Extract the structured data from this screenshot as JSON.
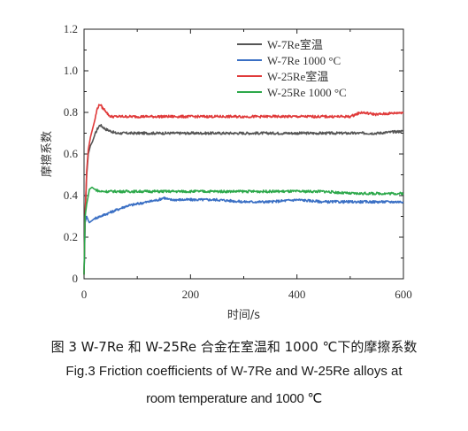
{
  "chart_data": {
    "type": "line",
    "ylabel": "摩擦系数",
    "xlabel": "时间/s",
    "xlim": [
      0,
      600
    ],
    "ylim": [
      0,
      1.2
    ],
    "xticks": [
      "0",
      "200",
      "400",
      "600"
    ],
    "yticks": [
      "0",
      "0.2",
      "0.4",
      "0.6",
      "0.8",
      "1.0",
      "1.2"
    ],
    "legend_position": "top-right",
    "series": [
      {
        "name": "W-7Re室温",
        "color": "#555555",
        "x": [
          0,
          2,
          5,
          8,
          12,
          16,
          20,
          25,
          30,
          35,
          40,
          50,
          60,
          80,
          100,
          120,
          140,
          160,
          180,
          200,
          250,
          300,
          350,
          400,
          450,
          500,
          550,
          600
        ],
        "y": [
          0.02,
          0.3,
          0.5,
          0.6,
          0.64,
          0.66,
          0.69,
          0.72,
          0.74,
          0.73,
          0.72,
          0.71,
          0.7,
          0.7,
          0.7,
          0.7,
          0.7,
          0.7,
          0.7,
          0.7,
          0.7,
          0.7,
          0.7,
          0.7,
          0.7,
          0.7,
          0.7,
          0.71
        ]
      },
      {
        "name": "W-7Re 1000 °C",
        "color": "#3a6fc4",
        "x": [
          0,
          2,
          5,
          8,
          10,
          15,
          20,
          30,
          40,
          60,
          80,
          100,
          120,
          140,
          150,
          160,
          180,
          200,
          250,
          300,
          350,
          400,
          450,
          500,
          550,
          600
        ],
        "y": [
          0.02,
          0.27,
          0.3,
          0.28,
          0.27,
          0.28,
          0.29,
          0.3,
          0.31,
          0.33,
          0.35,
          0.36,
          0.37,
          0.38,
          0.39,
          0.38,
          0.38,
          0.38,
          0.38,
          0.37,
          0.37,
          0.38,
          0.37,
          0.37,
          0.37,
          0.37
        ]
      },
      {
        "name": "W-25Re室温",
        "color": "#e03a3a",
        "x": [
          0,
          2,
          5,
          8,
          12,
          16,
          20,
          25,
          30,
          35,
          40,
          45,
          50,
          60,
          80,
          100,
          150,
          200,
          250,
          300,
          350,
          400,
          450,
          500,
          520,
          550,
          600
        ],
        "y": [
          0.02,
          0.3,
          0.52,
          0.62,
          0.68,
          0.72,
          0.76,
          0.82,
          0.84,
          0.82,
          0.81,
          0.79,
          0.78,
          0.78,
          0.78,
          0.78,
          0.78,
          0.78,
          0.78,
          0.78,
          0.78,
          0.78,
          0.78,
          0.78,
          0.8,
          0.79,
          0.8
        ]
      },
      {
        "name": "W-25Re 1000 °C",
        "color": "#2ca84a",
        "x": [
          0,
          2,
          5,
          8,
          10,
          15,
          20,
          30,
          40,
          60,
          80,
          100,
          150,
          200,
          250,
          300,
          350,
          400,
          450,
          500,
          550,
          600
        ],
        "y": [
          0.02,
          0.3,
          0.36,
          0.4,
          0.43,
          0.44,
          0.43,
          0.42,
          0.42,
          0.42,
          0.42,
          0.42,
          0.42,
          0.42,
          0.42,
          0.42,
          0.42,
          0.42,
          0.42,
          0.41,
          0.41,
          0.41
        ]
      }
    ]
  },
  "caption": {
    "zh": "图 3   W-7Re 和 W-25Re 合金在室温和 1000 ℃下的摩擦系数",
    "en_line1": "Fig.3    Friction coefficients of W-7Re and W-25Re alloys at",
    "en_line2": "room temperature and 1000 ℃"
  }
}
